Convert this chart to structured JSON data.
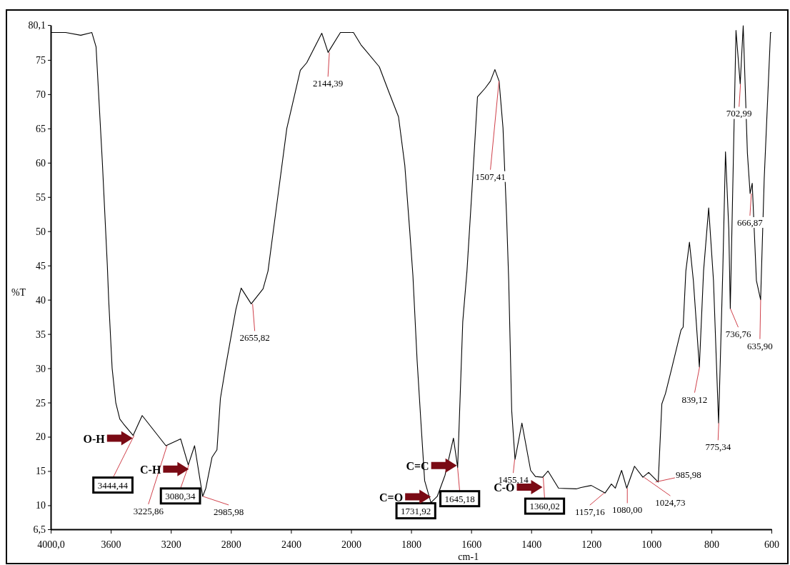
{
  "chart_data": [
    {
      "type": "line",
      "ylabel": "%T",
      "grid": false,
      "xlim": [
        4000,
        2000
      ],
      "xticks": [
        {
          "value": 4000,
          "label": "4000,0"
        },
        3600,
        3200,
        2800,
        2400,
        2000
      ],
      "ylim": [
        6.5,
        80.1
      ],
      "yticks": [
        {
          "value": 6.5,
          "label": "6,5"
        },
        10,
        15,
        20,
        25,
        30,
        35,
        40,
        45,
        50,
        55,
        60,
        65,
        70,
        75,
        {
          "value": 80.1,
          "label": "80,1"
        }
      ],
      "marker": "none",
      "line_style": "solid",
      "series": [
        {
          "color": "#000000",
          "x": [
            4000,
            3900,
            3800,
            3726,
            3698,
            3656,
            3623,
            3614,
            3591,
            3567,
            3540,
            3516,
            3451,
            3391,
            3233,
            3135,
            3084,
            3042,
            2988,
            2967,
            2926,
            2893,
            2870,
            2837,
            2767,
            2732,
            2665,
            2586,
            2553,
            2488,
            2428,
            2395,
            2338,
            2295,
            2195,
            2153,
            2071,
            2000
          ],
          "values": [
            79,
            79,
            78.6,
            79,
            76.9,
            60,
            45,
            40,
            30,
            25,
            22.6,
            21.9,
            20.2,
            23.1,
            18.7,
            19.7,
            15.9,
            18.7,
            11.3,
            12.5,
            17,
            18.1,
            25.6,
            30,
            38.6,
            41.7,
            39.4,
            41.6,
            44.2,
            55,
            65,
            68.1,
            73.5,
            74.6,
            78.9,
            76.1,
            79,
            79
          ]
        }
      ],
      "annotations": [
        {
          "text": "3444,44",
          "x": 3444.44,
          "y": 20.2
        },
        {
          "text": "3225,86",
          "x": 3225.86,
          "y": 18.7
        },
        {
          "text": "3080,34",
          "x": 3080.34,
          "y": 15.9
        },
        {
          "text": "2985,98",
          "x": 2985.98,
          "y": 11.3
        },
        {
          "text": "2655,82",
          "x": 2655.82,
          "y": 39.4
        },
        {
          "text": "2144,39",
          "x": 2144.39,
          "y": 76.1
        },
        {
          "text": "O-H",
          "x": 3444.44,
          "y": 20.2
        },
        {
          "text": "C-H",
          "x": 3080.34,
          "y": 15.9
        }
      ]
    },
    {
      "type": "line",
      "xlabel": "cm-1",
      "xlim": [
        2000,
        600
      ],
      "xticks": [
        1800,
        1600,
        1400,
        1200,
        1000,
        800,
        600
      ],
      "ylim": [
        6.5,
        80.1
      ],
      "tick_labels": "x",
      "grid": false,
      "marker": "none",
      "line_style": "solid",
      "series": [
        {
          "color": "#000000",
          "x": [
            2000,
            1992,
            1967,
            1906,
            1873,
            1842,
            1821,
            1805,
            1794,
            1780,
            1767,
            1755,
            1734,
            1713,
            1687,
            1659,
            1645,
            1628,
            1614,
            1595,
            1579,
            1553,
            1536,
            1521,
            1507,
            1494,
            1482,
            1475,
            1465,
            1454,
            1431,
            1402,
            1386,
            1362,
            1344,
            1309,
            1250,
            1234,
            1200,
            1154,
            1133,
            1120,
            1099,
            1082,
            1056,
            1028,
            1009,
            977,
            965,
            953,
            932,
            901,
            894,
            885,
            873,
            860,
            840,
            826,
            809,
            793,
            776,
            762,
            753,
            742,
            737,
            718,
            704,
            694,
            680,
            671,
            664,
            650,
            636,
            624,
            603,
            600
          ],
          "values": [
            79,
            79,
            77.2,
            74,
            70.2,
            66.7,
            59.6,
            50.3,
            43.5,
            31.1,
            21.9,
            13.6,
            10.4,
            11.3,
            14.4,
            19.8,
            15.5,
            36.8,
            44.2,
            57.7,
            69.6,
            70.9,
            71.9,
            73.6,
            71.9,
            65.1,
            52.1,
            42.8,
            23.8,
            16.7,
            22,
            15.1,
            14.2,
            14.1,
            15,
            12.5,
            12.4,
            12.6,
            12.9,
            11.8,
            13.1,
            12.5,
            15.1,
            12.5,
            15.7,
            14.1,
            14.8,
            13.4,
            24.8,
            26.3,
            30,
            35.6,
            36,
            44.2,
            48.4,
            42.8,
            30.2,
            44.2,
            53.4,
            42.8,
            22,
            44.2,
            61.6,
            50.3,
            38.7,
            79.3,
            71.5,
            80,
            61.4,
            55.5,
            57,
            42.8,
            40,
            57.7,
            79,
            79
          ]
        }
      ],
      "annotations": [
        {
          "text": "1731,92",
          "x": 1731.92,
          "y": 10.4
        },
        {
          "text": "1645,18",
          "x": 1645.18,
          "y": 15.5
        },
        {
          "text": "1507,41",
          "x": 1507.41,
          "y": 71.9
        },
        {
          "text": "1455,14",
          "x": 1455.14,
          "y": 16.7
        },
        {
          "text": "1360,02",
          "x": 1360.02,
          "y": 14.1
        },
        {
          "text": "1157,16",
          "x": 1157.16,
          "y": 11.8
        },
        {
          "text": "1080,00",
          "x": 1080,
          "y": 12.5
        },
        {
          "text": "1024,73",
          "x": 1024.73,
          "y": 14.1
        },
        {
          "text": "985,98",
          "x": 985.98,
          "y": 13.4
        },
        {
          "text": "839,12",
          "x": 839.12,
          "y": 30.2
        },
        {
          "text": "775,34",
          "x": 775.34,
          "y": 22
        },
        {
          "text": "736,76",
          "x": 736.76,
          "y": 38.7
        },
        {
          "text": "702,99",
          "x": 702.99,
          "y": 71.5
        },
        {
          "text": "666,87",
          "x": 666.87,
          "y": 55.5
        },
        {
          "text": "635,90",
          "x": 635.9,
          "y": 40
        },
        {
          "text": "C=O",
          "x": 1731.92,
          "y": 10.4
        },
        {
          "text": "C=C",
          "x": 1645.18,
          "y": 15.5
        },
        {
          "text": "C-O",
          "x": 1360.02,
          "y": 14.1
        }
      ]
    }
  ]
}
